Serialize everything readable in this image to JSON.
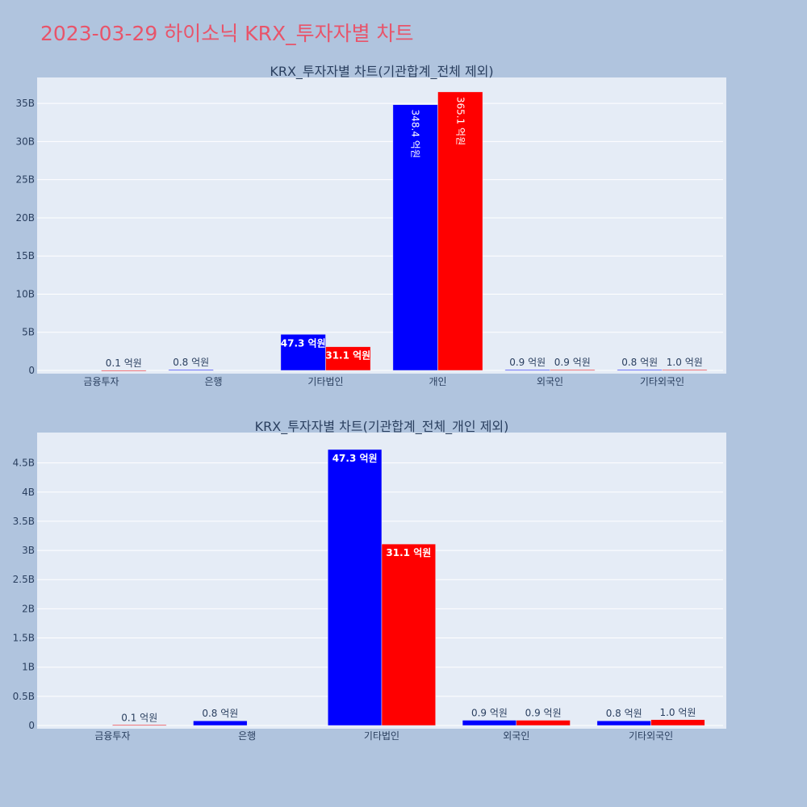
{
  "page": {
    "title": "2023-03-29 하이소닉 KRX_투자자별 차트"
  },
  "colors": {
    "background": "#b0c4de",
    "plot_bg": "#e5ecf6",
    "grid": "#ffffff",
    "title": "#e8546a",
    "series_a": "#0000ff",
    "series_b": "#ff0000"
  },
  "chart_data": [
    {
      "type": "bar",
      "title": "KRX_투자자별 차트(기관합계_전체 제외)",
      "categories": [
        "금융투자",
        "은행",
        "기타법인",
        "개인",
        "외국인",
        "기타외국인"
      ],
      "yticks": [
        "0",
        "5B",
        "10B",
        "15B",
        "20B",
        "25B",
        "30B",
        "35B"
      ],
      "ytick_values": [
        0,
        5000000000,
        10000000000,
        15000000000,
        20000000000,
        25000000000,
        30000000000,
        35000000000
      ],
      "ylim": [
        0,
        38400000000
      ],
      "series": [
        {
          "color": "#0000ff",
          "values": [
            0,
            80000000,
            4730000000,
            34840000000,
            90000000,
            80000000
          ],
          "labels": [
            "",
            "0.8 억원",
            "47.3 억원",
            "348.4 억원",
            "0.9 억원",
            "0.8 억원"
          ]
        },
        {
          "color": "#ff0000",
          "values": [
            10000000,
            0,
            3110000000,
            36510000000,
            90000000,
            100000000
          ],
          "labels": [
            "0.1 억원",
            "",
            "31.1 억원",
            "365.1 억원",
            "0.9 억원",
            "1.0 억원"
          ]
        }
      ]
    },
    {
      "type": "bar",
      "title": "KRX_투자자별 차트(기관합계_전체_개인 제외)",
      "categories": [
        "금융투자",
        "은행",
        "기타법인",
        "외국인",
        "기타외국인"
      ],
      "yticks": [
        "0",
        "0.5B",
        "1B",
        "1.5B",
        "2B",
        "2.5B",
        "3B",
        "3.5B",
        "4B",
        "4.5B"
      ],
      "ytick_values": [
        0,
        500000000,
        1000000000,
        1500000000,
        2000000000,
        2500000000,
        3000000000,
        3500000000,
        4000000000,
        4500000000
      ],
      "ylim": [
        0,
        5020000000
      ],
      "series": [
        {
          "color": "#0000ff",
          "values": [
            0,
            80000000,
            4730000000,
            90000000,
            80000000
          ],
          "labels": [
            "",
            "0.8 억원",
            "47.3 억원",
            "0.9 억원",
            "0.8 억원"
          ]
        },
        {
          "color": "#ff0000",
          "values": [
            10000000,
            0,
            3110000000,
            90000000,
            100000000
          ],
          "labels": [
            "0.1 억원",
            "",
            "31.1 억원",
            "0.9 억원",
            "1.0 억원"
          ]
        }
      ]
    }
  ]
}
